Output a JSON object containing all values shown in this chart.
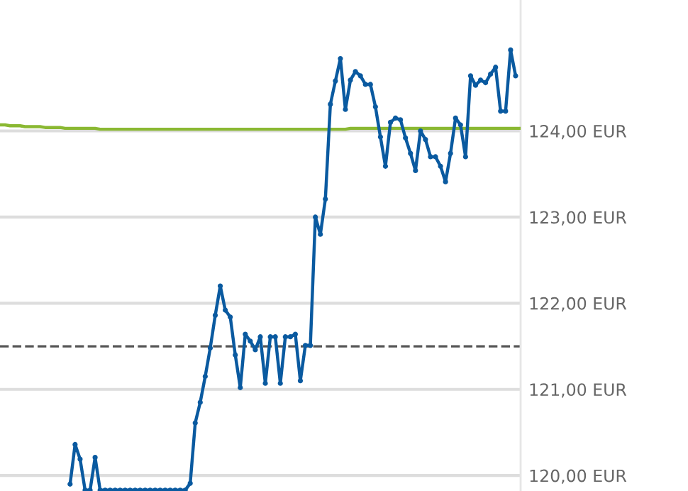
{
  "chart_data": {
    "type": "line",
    "categories": [
      null,
      null,
      null,
      null,
      null,
      null,
      null,
      null,
      null,
      null,
      null,
      null,
      null,
      null,
      null,
      null,
      null,
      null,
      null,
      null,
      null,
      null,
      null,
      null,
      null,
      null,
      null,
      null,
      null,
      null,
      null,
      null,
      null,
      null,
      null,
      null,
      null,
      null,
      null,
      null,
      null,
      null,
      null,
      null,
      null,
      null,
      null,
      null,
      null,
      null,
      null,
      null,
      null,
      null,
      null,
      null,
      null,
      null,
      null,
      null,
      null,
      null,
      null,
      null,
      null,
      null,
      null,
      null,
      null,
      null,
      null,
      null,
      null,
      null,
      null,
      null,
      null,
      null,
      null,
      null,
      null,
      null,
      null,
      null,
      null,
      null,
      null,
      null,
      null,
      null,
      null,
      null,
      null,
      null,
      null,
      null,
      null,
      null,
      null,
      null,
      null,
      null,
      null,
      null,
      null
    ],
    "ylim": [
      119.82,
      125.52
    ],
    "yticks": [
      {
        "value": 120,
        "label": "120,00 EUR"
      },
      {
        "value": 121,
        "label": "121,00 EUR"
      },
      {
        "value": 122,
        "label": "122,00 EUR"
      },
      {
        "value": 123,
        "label": "123,00 EUR"
      },
      {
        "value": 124,
        "label": "124,00 EUR"
      }
    ],
    "grid": "y",
    "series": [
      {
        "color": "#8ab832",
        "marker": "none",
        "values": [
          124.07,
          124.07,
          124.06,
          124.06,
          124.06,
          124.05,
          124.05,
          124.05,
          124.05,
          124.04,
          124.04,
          124.04,
          124.04,
          124.03,
          124.03,
          124.03,
          124.03,
          124.03,
          124.03,
          124.03,
          124.02,
          124.02,
          124.02,
          124.02,
          124.02,
          124.02,
          124.02,
          124.02,
          124.02,
          124.02,
          124.02,
          124.02,
          124.02,
          124.02,
          124.02,
          124.02,
          124.02,
          124.02,
          124.02,
          124.02,
          124.02,
          124.02,
          124.02,
          124.02,
          124.02,
          124.02,
          124.02,
          124.02,
          124.02,
          124.02,
          124.02,
          124.02,
          124.02,
          124.02,
          124.02,
          124.02,
          124.02,
          124.02,
          124.02,
          124.02,
          124.02,
          124.02,
          124.02,
          124.02,
          124.02,
          124.02,
          124.02,
          124.02,
          124.02,
          124.02,
          124.03,
          124.03,
          124.03,
          124.03,
          124.03,
          124.03,
          124.03,
          124.03,
          124.03,
          124.03,
          124.03,
          124.03,
          124.03,
          124.03,
          124.03,
          124.03,
          124.03,
          124.03,
          124.03,
          124.03,
          124.03,
          124.03,
          124.03,
          124.03,
          124.03,
          124.03,
          124.03,
          124.03,
          124.03,
          124.03,
          124.03,
          124.03,
          124.03,
          124.03,
          124.03
        ]
      },
      {
        "color": "#0a5aa0",
        "marker": "circle",
        "values": [
          null,
          null,
          null,
          null,
          null,
          null,
          null,
          null,
          null,
          null,
          null,
          null,
          null,
          null,
          119.9,
          120.36,
          120.19,
          119.83,
          119.83,
          120.21,
          119.83,
          119.83,
          119.83,
          119.83,
          119.83,
          119.83,
          119.83,
          119.83,
          119.83,
          119.83,
          119.83,
          119.83,
          119.83,
          119.83,
          119.83,
          119.83,
          119.83,
          119.83,
          119.91,
          120.61,
          120.85,
          121.15,
          121.48,
          121.86,
          122.2,
          121.92,
          121.84,
          121.4,
          121.02,
          121.64,
          121.56,
          121.46,
          121.61,
          121.07,
          121.61,
          121.61,
          121.07,
          121.61,
          121.61,
          121.64,
          121.1,
          121.51,
          121.51,
          123.0,
          122.8,
          123.21,
          124.31,
          124.58,
          124.84,
          124.25,
          124.59,
          124.69,
          124.64,
          124.54,
          124.54,
          124.28,
          123.93,
          123.59,
          124.1,
          124.15,
          124.13,
          123.92,
          123.74,
          123.54,
          124.0,
          123.9,
          123.7,
          123.7,
          123.59,
          123.41,
          123.74,
          124.15,
          124.07,
          123.7,
          124.64,
          124.53,
          124.59,
          124.56,
          124.66,
          124.74,
          124.23,
          124.23,
          124.94,
          124.64,
          null
        ]
      }
    ],
    "ref_lines": [
      {
        "axis": "y",
        "value": 121.5,
        "color": "#555555",
        "line_style": "dashed"
      }
    ]
  }
}
